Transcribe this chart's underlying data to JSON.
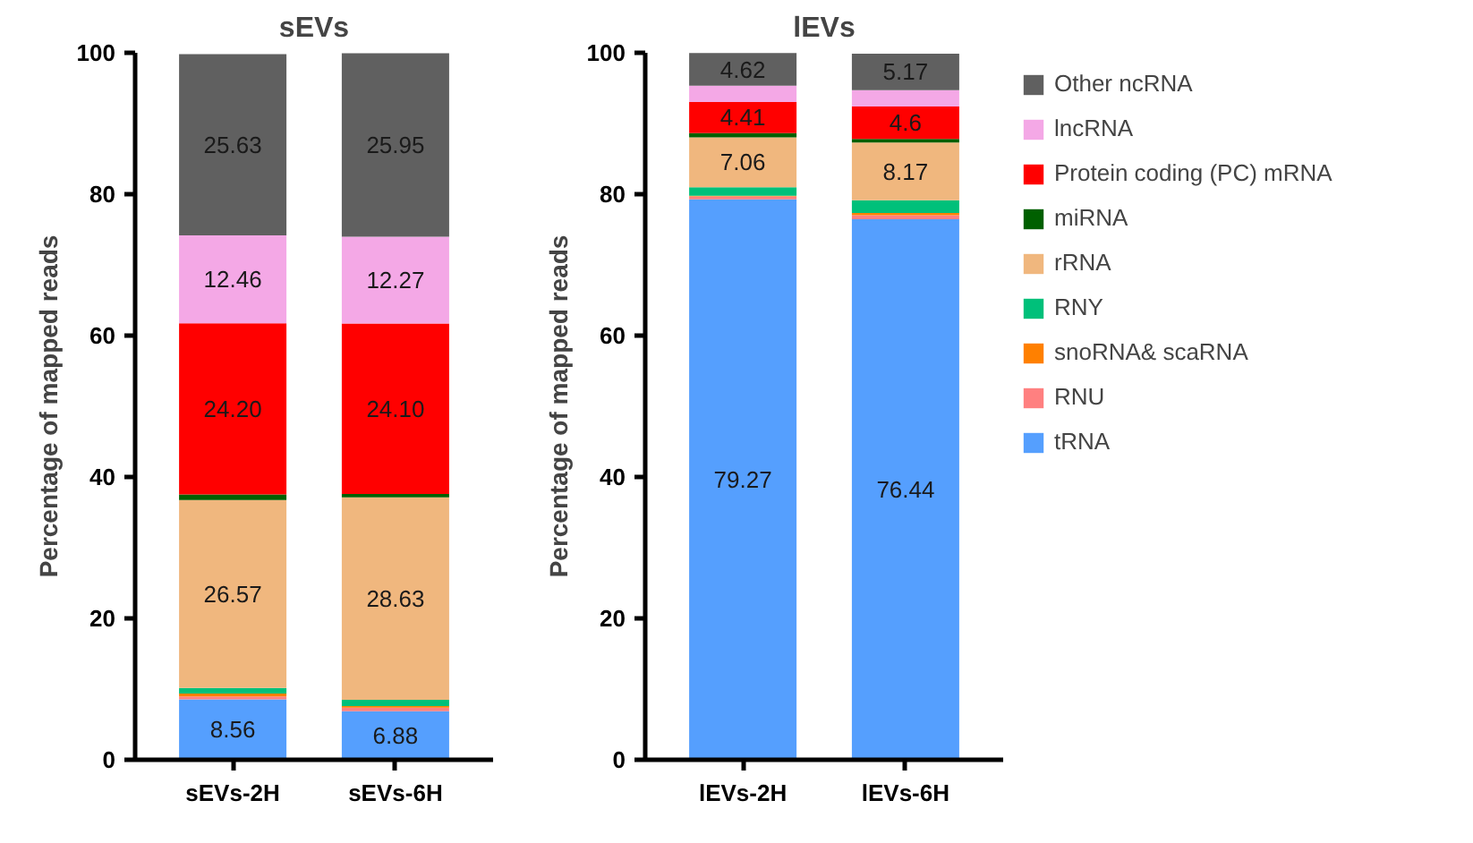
{
  "chart_data": [
    {
      "type": "bar",
      "stacked": true,
      "title": "sEVs",
      "ylabel": "Percentage of mapped reads",
      "categories": [
        "sEVs-2H",
        "sEVs-6H"
      ],
      "ylim": [
        0,
        100
      ],
      "yticks": [
        0,
        20,
        40,
        60,
        80,
        100
      ],
      "grid": false,
      "legend": false,
      "series": [
        {
          "color": "#559ffe",
          "values": [
            8.56,
            6.88
          ],
          "value_labels": [
            "8.56",
            "6.88"
          ]
        },
        {
          "color": "#ff8080",
          "values": [
            0.4,
            0.5
          ]
        },
        {
          "color": "#ff8000",
          "values": [
            0.4,
            0.2
          ]
        },
        {
          "color": "#00c07a",
          "values": [
            0.8,
            0.9
          ]
        },
        {
          "color": "#f0b77e",
          "values": [
            26.57,
            28.63
          ],
          "value_labels": [
            "26.57",
            "28.63"
          ]
        },
        {
          "color": "#006000",
          "values": [
            0.8,
            0.5
          ]
        },
        {
          "color": "#ff0000",
          "values": [
            24.2,
            24.1
          ],
          "value_labels": [
            "24.20",
            "24.10"
          ]
        },
        {
          "color": "#f4a8e6",
          "values": [
            12.46,
            12.27
          ],
          "value_labels": [
            "12.46",
            "12.27"
          ]
        },
        {
          "color": "#606060",
          "values": [
            25.63,
            25.95
          ],
          "value_labels": [
            "25.63",
            "25.95"
          ]
        }
      ]
    },
    {
      "type": "bar",
      "stacked": true,
      "title": "lEVs",
      "ylabel": "Percentage of mapped reads",
      "categories": [
        "lEVs-2H",
        "lEVs-6H"
      ],
      "ylim": [
        0,
        100
      ],
      "yticks": [
        0,
        20,
        40,
        60,
        80,
        100
      ],
      "grid": false,
      "legend": "right",
      "series": [
        {
          "name": "tRNA",
          "color": "#559ffe",
          "values": [
            79.27,
            76.44
          ],
          "value_labels": [
            "79.27",
            "76.44"
          ]
        },
        {
          "name": "RNU",
          "color": "#ff8080",
          "values": [
            0.4,
            0.6
          ]
        },
        {
          "name": "snoRNA& scaRNA",
          "color": "#ff8000",
          "values": [
            0.1,
            0.3
          ]
        },
        {
          "name": "RNY",
          "color": "#00c07a",
          "values": [
            1.2,
            1.8
          ]
        },
        {
          "name": "rRNA",
          "color": "#f0b77e",
          "values": [
            7.06,
            8.17
          ],
          "value_labels": [
            "7.06",
            "8.17"
          ]
        },
        {
          "name": "miRNA",
          "color": "#006000",
          "values": [
            0.6,
            0.5
          ]
        },
        {
          "name": "Protein coding (PC) mRNA",
          "color": "#ff0000",
          "values": [
            4.41,
            4.6
          ],
          "value_labels": [
            "4.41",
            "4.6"
          ]
        },
        {
          "name": "lncRNA",
          "color": "#f4a8e6",
          "values": [
            2.3,
            2.3
          ]
        },
        {
          "name": "Other ncRNA",
          "color": "#606060",
          "values": [
            4.62,
            5.17
          ],
          "value_labels": [
            "4.62",
            "5.17"
          ]
        }
      ]
    }
  ]
}
